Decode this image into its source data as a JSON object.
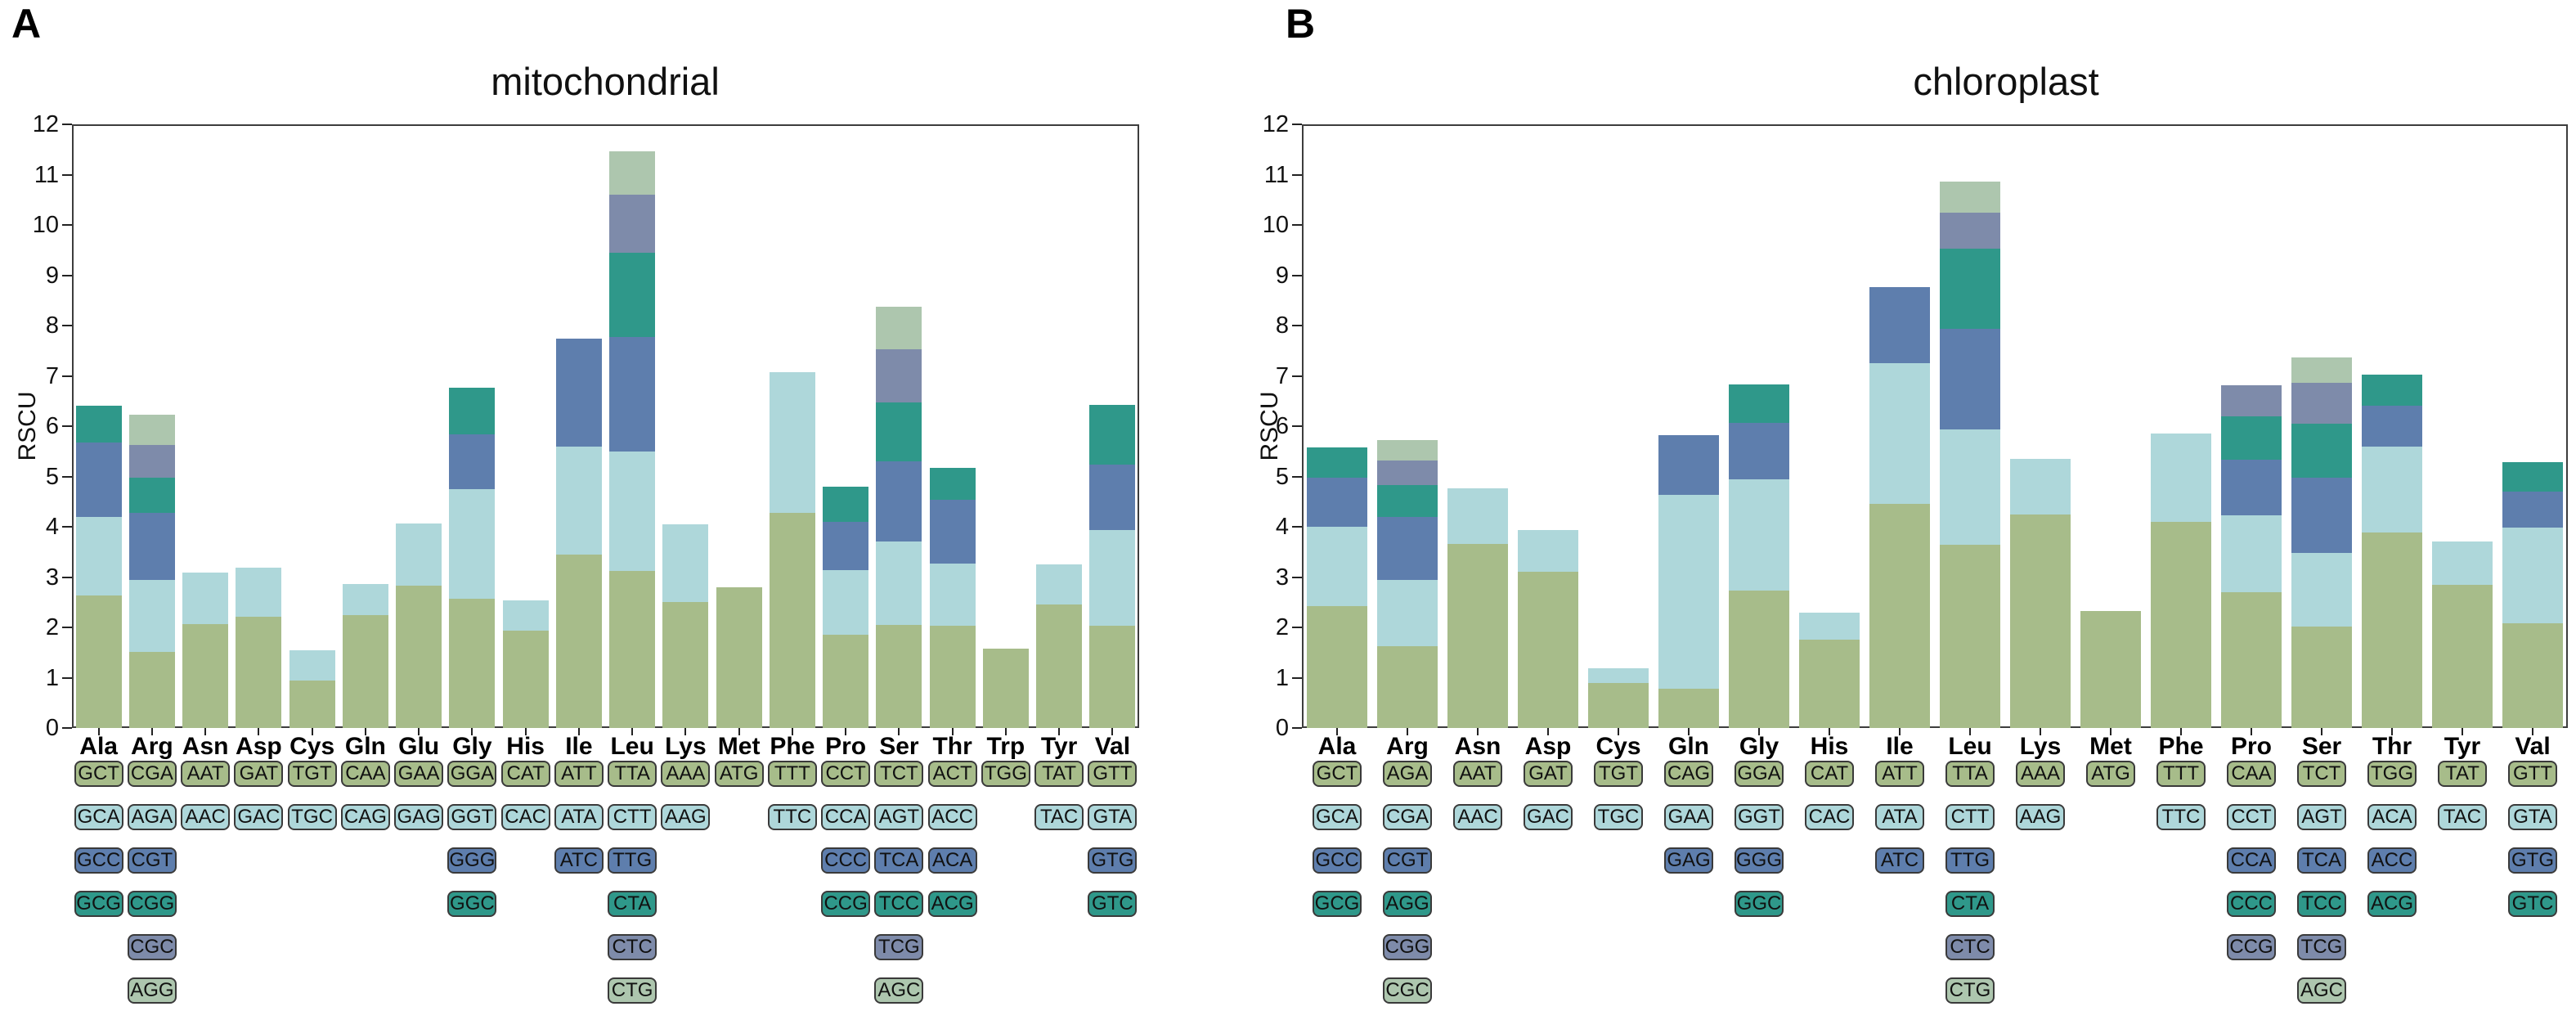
{
  "figure": {
    "background": "#ffffff"
  },
  "axis": {
    "ylabel": "RSCU",
    "ymin": 0,
    "ymax": 12
  },
  "stack_colors": [
    "#a7bc8a",
    "#aed7da",
    "#5e7ead",
    "#2f988a",
    "#7e8baa",
    "#adc6ae"
  ],
  "chart_data": [
    {
      "type": "bar",
      "stacked": true,
      "panel_letter": "A",
      "title": "mitochondrial",
      "ylabel": "RSCU",
      "ylim": [
        0,
        12
      ],
      "yticks": [
        0,
        1,
        2,
        3,
        4,
        5,
        6,
        7,
        8,
        9,
        10,
        11,
        12
      ],
      "grid": false,
      "legend": "none",
      "stack_colors": [
        "#a7bc8a",
        "#aed7da",
        "#5e7ead",
        "#2f988a",
        "#7e8baa",
        "#adc6ae"
      ],
      "groups": [
        {
          "aa": "Ala",
          "codons": [
            {
              "codon": "GCT",
              "rscu": 2.64
            },
            {
              "codon": "GCA",
              "rscu": 1.56
            },
            {
              "codon": "GCC",
              "rscu": 1.47
            },
            {
              "codon": "GCG",
              "rscu": 0.73
            }
          ]
        },
        {
          "aa": "Arg",
          "codons": [
            {
              "codon": "CGA",
              "rscu": 1.52
            },
            {
              "codon": "AGA",
              "rscu": 1.43
            },
            {
              "codon": "CGT",
              "rscu": 1.32
            },
            {
              "codon": "CGG",
              "rscu": 0.71
            },
            {
              "codon": "CGC",
              "rscu": 0.64
            },
            {
              "codon": "AGG",
              "rscu": 0.6
            }
          ]
        },
        {
          "aa": "Asn",
          "codons": [
            {
              "codon": "AAT",
              "rscu": 2.06
            },
            {
              "codon": "AAC",
              "rscu": 1.03
            }
          ]
        },
        {
          "aa": "Asp",
          "codons": [
            {
              "codon": "GAT",
              "rscu": 2.21
            },
            {
              "codon": "GAC",
              "rscu": 0.98
            }
          ]
        },
        {
          "aa": "Cys",
          "codons": [
            {
              "codon": "TGT",
              "rscu": 0.94
            },
            {
              "codon": "TGC",
              "rscu": 0.61
            }
          ]
        },
        {
          "aa": "Gln",
          "codons": [
            {
              "codon": "CAA",
              "rscu": 2.25
            },
            {
              "codon": "CAG",
              "rscu": 0.62
            }
          ]
        },
        {
          "aa": "Glu",
          "codons": [
            {
              "codon": "GAA",
              "rscu": 2.83
            },
            {
              "codon": "GAG",
              "rscu": 1.24
            }
          ]
        },
        {
          "aa": "Gly",
          "codons": [
            {
              "codon": "GGA",
              "rscu": 2.57
            },
            {
              "codon": "GGT",
              "rscu": 2.18
            },
            {
              "codon": "GGG",
              "rscu": 1.08
            },
            {
              "codon": "GGC",
              "rscu": 0.93
            }
          ]
        },
        {
          "aa": "His",
          "codons": [
            {
              "codon": "CAT",
              "rscu": 1.94
            },
            {
              "codon": "CAC",
              "rscu": 0.59
            }
          ]
        },
        {
          "aa": "Ile",
          "codons": [
            {
              "codon": "ATT",
              "rscu": 3.45
            },
            {
              "codon": "ATA",
              "rscu": 2.15
            },
            {
              "codon": "ATC",
              "rscu": 2.14
            }
          ]
        },
        {
          "aa": "Leu",
          "codons": [
            {
              "codon": "TTA",
              "rscu": 3.13
            },
            {
              "codon": "CTT",
              "rscu": 2.37
            },
            {
              "codon": "TTG",
              "rscu": 2.27
            },
            {
              "codon": "CTA",
              "rscu": 1.67
            },
            {
              "codon": "CTC",
              "rscu": 1.16
            },
            {
              "codon": "CTG",
              "rscu": 0.87
            }
          ]
        },
        {
          "aa": "Lys",
          "codons": [
            {
              "codon": "AAA",
              "rscu": 2.5
            },
            {
              "codon": "AAG",
              "rscu": 1.55
            }
          ]
        },
        {
          "aa": "Met",
          "codons": [
            {
              "codon": "ATG",
              "rscu": 2.8
            }
          ]
        },
        {
          "aa": "Phe",
          "codons": [
            {
              "codon": "TTT",
              "rscu": 4.28
            },
            {
              "codon": "TTC",
              "rscu": 2.8
            }
          ]
        },
        {
          "aa": "Pro",
          "codons": [
            {
              "codon": "CCT",
              "rscu": 1.86
            },
            {
              "codon": "CCA",
              "rscu": 1.28
            },
            {
              "codon": "CCC",
              "rscu": 0.96
            },
            {
              "codon": "CCG",
              "rscu": 0.7
            }
          ]
        },
        {
          "aa": "Ser",
          "codons": [
            {
              "codon": "TCT",
              "rscu": 2.05
            },
            {
              "codon": "AGT",
              "rscu": 1.65
            },
            {
              "codon": "TCA",
              "rscu": 1.6
            },
            {
              "codon": "TCC",
              "rscu": 1.17
            },
            {
              "codon": "TCG",
              "rscu": 1.06
            },
            {
              "codon": "AGC",
              "rscu": 0.85
            }
          ]
        },
        {
          "aa": "Thr",
          "codons": [
            {
              "codon": "ACT",
              "rscu": 2.03
            },
            {
              "codon": "ACC",
              "rscu": 1.24
            },
            {
              "codon": "ACA",
              "rscu": 1.26
            },
            {
              "codon": "ACG",
              "rscu": 0.64
            }
          ]
        },
        {
          "aa": "Trp",
          "codons": [
            {
              "codon": "TGG",
              "rscu": 1.58
            }
          ]
        },
        {
          "aa": "Tyr",
          "codons": [
            {
              "codon": "TAT",
              "rscu": 2.45
            },
            {
              "codon": "TAC",
              "rscu": 0.81
            }
          ]
        },
        {
          "aa": "Val",
          "codons": [
            {
              "codon": "GTT",
              "rscu": 2.03
            },
            {
              "codon": "GTA",
              "rscu": 1.9
            },
            {
              "codon": "GTG",
              "rscu": 1.3
            },
            {
              "codon": "GTC",
              "rscu": 1.19
            }
          ]
        }
      ]
    },
    {
      "type": "bar",
      "stacked": true,
      "panel_letter": "B",
      "title": "chloroplast",
      "ylabel": "RSCU",
      "ylim": [
        0,
        12
      ],
      "yticks": [
        0,
        1,
        2,
        3,
        4,
        5,
        6,
        7,
        8,
        9,
        10,
        11,
        12
      ],
      "grid": false,
      "legend": "none",
      "stack_colors": [
        "#a7bc8a",
        "#aed7da",
        "#5e7ead",
        "#2f988a",
        "#7e8baa",
        "#adc6ae"
      ],
      "groups": [
        {
          "aa": "Ala",
          "codons": [
            {
              "codon": "GCT",
              "rscu": 2.43
            },
            {
              "codon": "GCA",
              "rscu": 1.57
            },
            {
              "codon": "GCC",
              "rscu": 0.97
            },
            {
              "codon": "GCG",
              "rscu": 0.6
            }
          ]
        },
        {
          "aa": "Arg",
          "codons": [
            {
              "codon": "AGA",
              "rscu": 1.62
            },
            {
              "codon": "CGA",
              "rscu": 1.33
            },
            {
              "codon": "CGT",
              "rscu": 1.25
            },
            {
              "codon": "AGG",
              "rscu": 0.63
            },
            {
              "codon": "CGG",
              "rscu": 0.49
            },
            {
              "codon": "CGC",
              "rscu": 0.41
            }
          ]
        },
        {
          "aa": "Asn",
          "codons": [
            {
              "codon": "AAT",
              "rscu": 3.66
            },
            {
              "codon": "AAC",
              "rscu": 1.11
            }
          ]
        },
        {
          "aa": "Asp",
          "codons": [
            {
              "codon": "GAT",
              "rscu": 3.1
            },
            {
              "codon": "GAC",
              "rscu": 0.83
            }
          ]
        },
        {
          "aa": "Cys",
          "codons": [
            {
              "codon": "TGT",
              "rscu": 0.9
            },
            {
              "codon": "TGC",
              "rscu": 0.28
            }
          ]
        },
        {
          "aa": "Gln",
          "codons": [
            {
              "codon": "CAG",
              "rscu": 0.78
            },
            {
              "codon": "GAA",
              "rscu": 3.85
            },
            {
              "codon": "GAG",
              "rscu": 1.19
            }
          ]
        },
        {
          "aa": "Gly",
          "codons": [
            {
              "codon": "GGA",
              "rscu": 2.73
            },
            {
              "codon": "GGT",
              "rscu": 2.22
            },
            {
              "codon": "GGG",
              "rscu": 1.12
            },
            {
              "codon": "GGC",
              "rscu": 0.76
            }
          ]
        },
        {
          "aa": "His",
          "codons": [
            {
              "codon": "CAT",
              "rscu": 1.76
            },
            {
              "codon": "CAC",
              "rscu": 0.54
            }
          ]
        },
        {
          "aa": "Ile",
          "codons": [
            {
              "codon": "ATT",
              "rscu": 4.45
            },
            {
              "codon": "ATA",
              "rscu": 2.8
            },
            {
              "codon": "ATC",
              "rscu": 1.52
            }
          ]
        },
        {
          "aa": "Leu",
          "codons": [
            {
              "codon": "TTA",
              "rscu": 3.64
            },
            {
              "codon": "CTT",
              "rscu": 2.29
            },
            {
              "codon": "TTG",
              "rscu": 2.0
            },
            {
              "codon": "CTA",
              "rscu": 1.6
            },
            {
              "codon": "CTC",
              "rscu": 0.72
            },
            {
              "codon": "CTG",
              "rscu": 0.62
            }
          ]
        },
        {
          "aa": "Lys",
          "codons": [
            {
              "codon": "AAA",
              "rscu": 4.25
            },
            {
              "codon": "AAG",
              "rscu": 1.1
            }
          ]
        },
        {
          "aa": "Met",
          "codons": [
            {
              "codon": "ATG",
              "rscu": 2.32
            }
          ]
        },
        {
          "aa": "Phe",
          "codons": [
            {
              "codon": "TTT",
              "rscu": 4.1
            },
            {
              "codon": "TTC",
              "rscu": 1.75
            }
          ]
        },
        {
          "aa": "Pro",
          "codons": [
            {
              "codon": "CAA",
              "rscu": 2.7
            },
            {
              "codon": "CCT",
              "rscu": 1.53
            },
            {
              "codon": "CCA",
              "rscu": 1.1
            },
            {
              "codon": "CCC",
              "rscu": 0.87
            },
            {
              "codon": "CCG",
              "rscu": 0.62
            }
          ]
        },
        {
          "aa": "Ser",
          "codons": [
            {
              "codon": "TCT",
              "rscu": 2.02
            },
            {
              "codon": "AGT",
              "rscu": 1.46
            },
            {
              "codon": "TCA",
              "rscu": 1.5
            },
            {
              "codon": "TCC",
              "rscu": 1.07
            },
            {
              "codon": "TCG",
              "rscu": 0.82
            },
            {
              "codon": "AGC",
              "rscu": 0.5
            }
          ]
        },
        {
          "aa": "Thr",
          "codons": [
            {
              "codon": "TGG",
              "rscu": 3.88
            },
            {
              "codon": "ACA",
              "rscu": 1.72
            },
            {
              "codon": "ACC",
              "rscu": 0.8
            },
            {
              "codon": "ACG",
              "rscu": 0.63
            }
          ]
        },
        {
          "aa": "Tyr",
          "codons": [
            {
              "codon": "TAT",
              "rscu": 2.85
            },
            {
              "codon": "TAC",
              "rscu": 0.85
            }
          ]
        },
        {
          "aa": "Val",
          "codons": [
            {
              "codon": "GTT",
              "rscu": 2.08
            },
            {
              "codon": "GTA",
              "rscu": 1.9
            },
            {
              "codon": "GTG",
              "rscu": 0.72
            },
            {
              "codon": "GTC",
              "rscu": 0.58
            }
          ]
        }
      ]
    }
  ]
}
